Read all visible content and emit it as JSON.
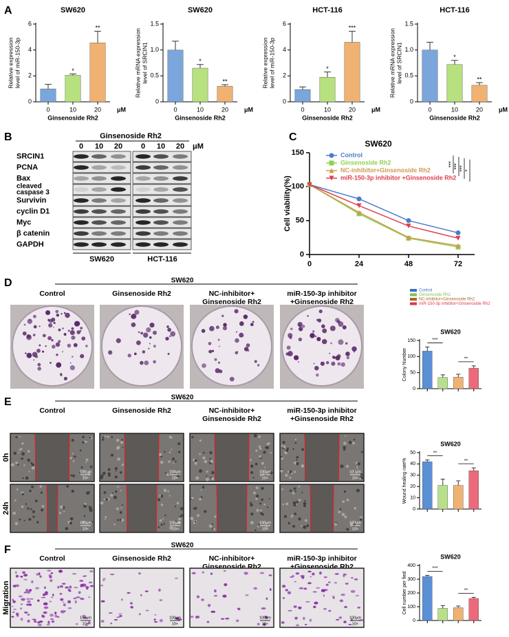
{
  "panel_labels": [
    "A",
    "B",
    "C",
    "D",
    "E",
    "F"
  ],
  "chart_data": [
    {
      "type": "bar",
      "title": "SW620",
      "ylabel": [
        "Relative expression",
        "level of miR-150-3p"
      ],
      "xlabel": "Ginsenoside Rh2",
      "unit": "μM",
      "categories": [
        "0",
        "10",
        "20"
      ],
      "values": [
        1.0,
        2.05,
        4.55
      ],
      "errors": [
        0.35,
        0.1,
        0.9
      ],
      "significance": [
        null,
        "*",
        "**"
      ],
      "colors": [
        "#7aa6dc",
        "#b7e07e",
        "#f0b272"
      ],
      "ylim": [
        0,
        6
      ],
      "yticks": [
        0,
        2,
        4,
        6
      ]
    },
    {
      "type": "bar",
      "title": "SW620",
      "ylabel": [
        "Relative mRNA expression",
        "level of SRCIN1"
      ],
      "xlabel": "Ginsenoside Rh2",
      "unit": "μM",
      "categories": [
        "0",
        "10",
        "20"
      ],
      "values": [
        1.0,
        0.65,
        0.3
      ],
      "errors": [
        0.17,
        0.07,
        0.03
      ],
      "significance": [
        null,
        "*",
        "**"
      ],
      "colors": [
        "#7aa6dc",
        "#b7e07e",
        "#f0b272"
      ],
      "ylim": [
        0,
        1.5
      ],
      "yticks": [
        0,
        0.5,
        {
          "value": 1,
          "label": "1.0"
        },
        1.5
      ]
    },
    {
      "type": "bar",
      "title": "HCT-116",
      "ylabel": [
        "Relative expression",
        "level of miR-150-3p"
      ],
      "xlabel": "Ginsenoside Rh2",
      "unit": "μM",
      "categories": [
        "0",
        "10",
        "20"
      ],
      "values": [
        0.95,
        1.9,
        4.6
      ],
      "errors": [
        0.2,
        0.4,
        0.85
      ],
      "significance": [
        null,
        "*",
        "***"
      ],
      "colors": [
        "#7aa6dc",
        "#b7e07e",
        "#f0b272"
      ],
      "ylim": [
        0,
        6
      ],
      "yticks": [
        0,
        2,
        4,
        6
      ]
    },
    {
      "type": "bar",
      "title": "HCT-116",
      "ylabel": [
        "Relative mRNA expression",
        "level of SRCIN1"
      ],
      "xlabel": "Ginsenoside Rh2",
      "unit": "μM",
      "categories": [
        "0",
        "10",
        "20"
      ],
      "values": [
        1.0,
        0.72,
        0.32
      ],
      "errors": [
        0.15,
        0.08,
        0.05
      ],
      "significance": [
        null,
        "*",
        "**"
      ],
      "colors": [
        "#7aa6dc",
        "#b7e07e",
        "#f0b272"
      ],
      "ylim": [
        0,
        1.5
      ],
      "yticks": [
        0,
        0.5,
        {
          "value": 1,
          "label": "1.0"
        },
        1.5
      ]
    },
    {
      "type": "line",
      "title": "SW620",
      "ylabel": "Cell viability(%)",
      "x": [
        0,
        24,
        48,
        72
      ],
      "xlim": [
        0,
        80
      ],
      "xticks": [
        0,
        24,
        48,
        72
      ],
      "ylim": [
        0,
        150
      ],
      "yticks": [
        0,
        50,
        100,
        150
      ],
      "significance": [
        "***",
        "***",
        "***",
        "*"
      ],
      "series": [
        {
          "name": "Control",
          "color": "#4a7cc9",
          "marker": "circle",
          "values": [
            103,
            82,
            50,
            32
          ]
        },
        {
          "name": "Ginsenoside Rh2",
          "color": "#8fd14f",
          "marker": "square",
          "values": [
            103,
            60,
            24,
            11
          ]
        },
        {
          "name": "NC-inhibitor+Ginsenoside Rh2",
          "color": "#cf9a52",
          "marker": "triangle",
          "values": [
            103,
            62,
            25,
            13
          ]
        },
        {
          "name": "miR-150-3p inhibitor +Ginsenoside Rh2",
          "color": "#e0404f",
          "marker": "triangle-down",
          "values": [
            103,
            72,
            42,
            24
          ]
        }
      ]
    },
    {
      "type": "bar",
      "title": "SW620",
      "ylabel": [
        "Colony Number"
      ],
      "legend": true,
      "categories": [
        "Control",
        "Ginsenoside Rh2",
        "NC-inhibitor+Ginsenoside Rh2",
        "miR-150-3p inhibitor+Ginsenoside Rh2"
      ],
      "legend_colors": [
        "#3f6fc4",
        "#7fc24a",
        "#a8672a",
        "#d93a4a"
      ],
      "values": [
        117,
        35,
        36,
        64
      ],
      "errors": [
        13,
        8,
        9,
        7
      ],
      "colors": [
        "#5b8fd6",
        "#b8e08a",
        "#f0b272",
        "#ec6a7a"
      ],
      "brackets": [
        {
          "between": [
            0,
            1
          ],
          "label": "***"
        },
        {
          "between": [
            2,
            3
          ],
          "label": "**"
        }
      ],
      "ylim": [
        0,
        150
      ],
      "yticks": [
        0,
        50,
        100,
        150
      ]
    },
    {
      "type": "bar",
      "title": "SW620",
      "ylabel": [
        "Wound healing rate%"
      ],
      "categories": [
        null,
        null,
        null,
        null
      ],
      "values": [
        42,
        21,
        21,
        34
      ],
      "errors": [
        1.5,
        5.5,
        4,
        2.5
      ],
      "colors": [
        "#5b8fd6",
        "#b8e08a",
        "#f0b272",
        "#ec6a7a"
      ],
      "brackets": [
        {
          "between": [
            0,
            1
          ],
          "label": "**"
        },
        {
          "between": [
            2,
            3
          ],
          "label": "**"
        }
      ],
      "ylim": [
        0,
        50
      ],
      "yticks": [
        0,
        10,
        20,
        30,
        40,
        50
      ]
    },
    {
      "type": "bar",
      "title": "SW620",
      "ylabel": [
        "Cell number per fied"
      ],
      "categories": [
        null,
        null,
        null,
        null
      ],
      "values": [
        320,
        88,
        93,
        160
      ],
      "errors": [
        8,
        20,
        12,
        8
      ],
      "colors": [
        "#5b8fd6",
        "#b8e08a",
        "#f0b272",
        "#ec6a7a"
      ],
      "brackets": [
        {
          "between": [
            0,
            1
          ],
          "label": "***"
        },
        {
          "between": [
            2,
            3
          ],
          "label": "**"
        }
      ],
      "ylim": [
        0,
        400
      ],
      "yticks": [
        0,
        100,
        200,
        300,
        400
      ]
    }
  ],
  "blot": {
    "treatment": "Ginsenoside Rh2",
    "doses": [
      "0",
      "10",
      "20",
      "0",
      "10",
      "20"
    ],
    "unit": "μM",
    "proteins": [
      [
        "SRCIN1"
      ],
      [
        "PCNA"
      ],
      [
        "Bax"
      ],
      [
        "cleaved",
        "caspase 3"
      ],
      [
        "Survivin"
      ],
      [
        "cyclin D1"
      ],
      [
        "Myc"
      ],
      [
        "β catenin"
      ],
      [
        "GAPDH"
      ]
    ],
    "cell_lines": [
      "SW620",
      "HCT-116"
    ]
  },
  "images": {
    "D": {
      "header": "SW620",
      "groups": [
        [
          "Control"
        ],
        [
          "Ginsenoside Rh2"
        ],
        [
          "NC-inhibitor+",
          "Ginsenoside Rh2"
        ],
        [
          "miR-150-3p inhibitor",
          "+Ginsenoside Rh2"
        ]
      ]
    },
    "E": {
      "header": "SW620",
      "groups": [
        [
          "Control"
        ],
        [
          "Ginsenoside Rh2"
        ],
        [
          "NC-inhibitor+",
          "Ginsenoside Rh2"
        ],
        [
          "miR-150-3p inhibitor",
          "+Ginsenoside Rh2"
        ]
      ],
      "rows": [
        "0h",
        "24h"
      ],
      "scale": "100μm",
      "magnification": "10×"
    },
    "F": {
      "header": "SW620",
      "groups": [
        [
          "Control"
        ],
        [
          "Ginsenoside Rh2"
        ],
        [
          "NC-inhibitor+",
          "Ginsenoside Rh2"
        ],
        [
          "miR-150-3p inhibitor",
          "+Ginsenoside Rh2"
        ]
      ],
      "rows": [
        "Migration"
      ],
      "scale": "100μm",
      "magnification": "10×"
    }
  }
}
